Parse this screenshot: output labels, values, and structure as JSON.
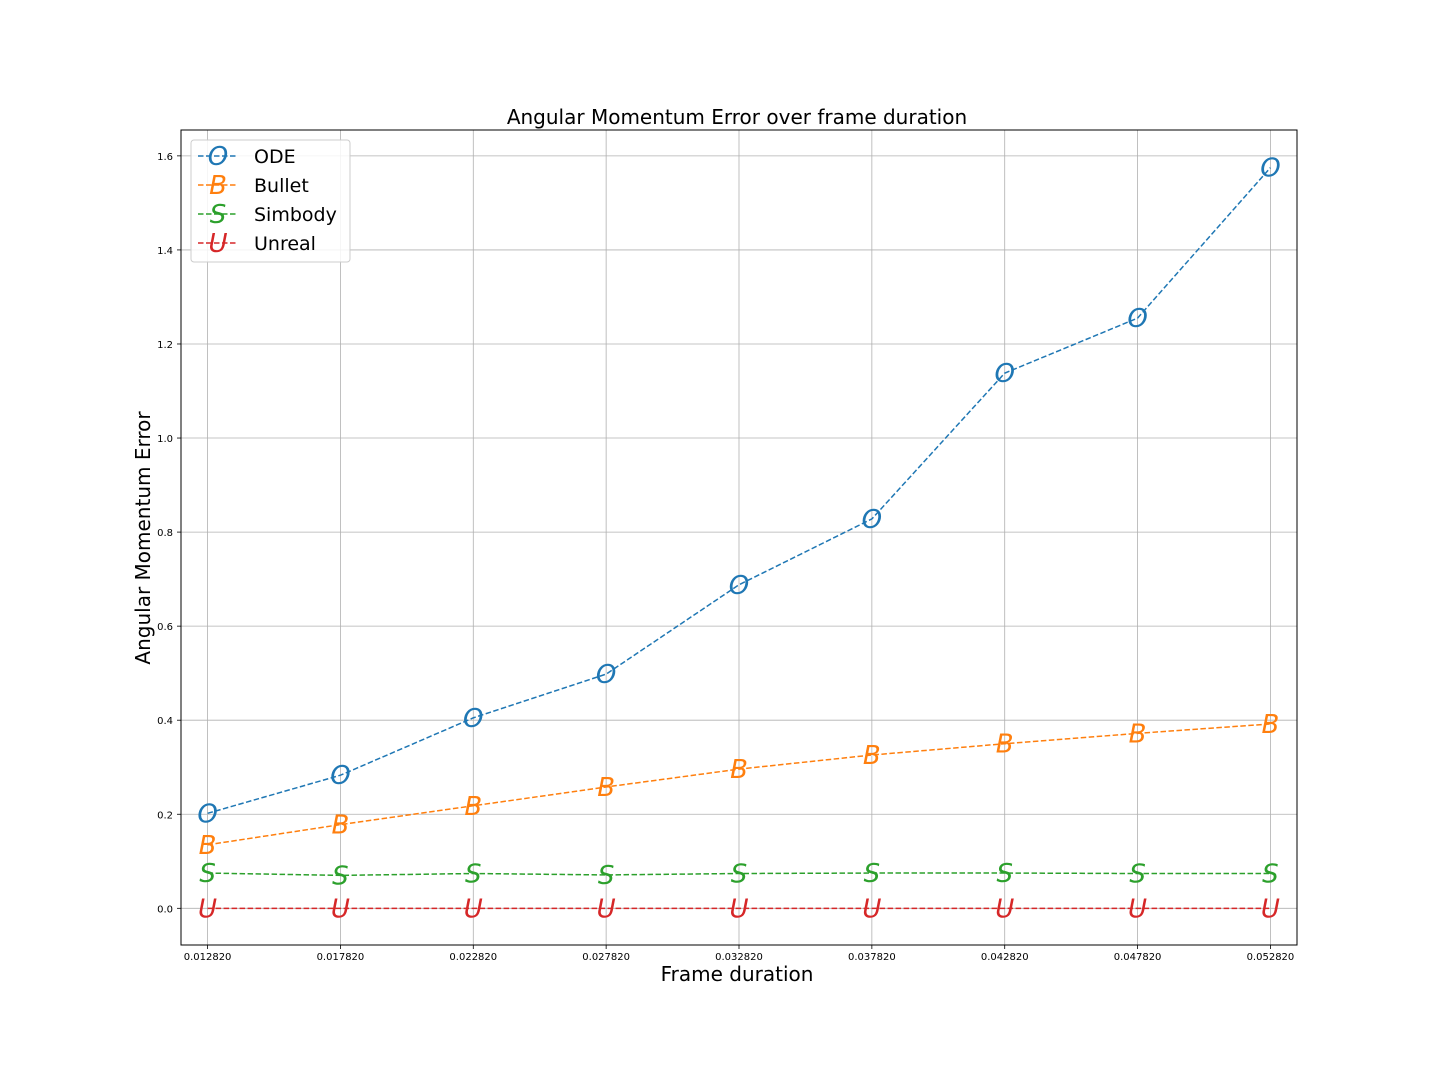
{
  "chart_data": {
    "type": "line",
    "title": "Angular Momentum Error over frame duration",
    "xlabel": "Frame duration",
    "ylabel": "Angular Momentum Error",
    "x": [
      0.01282,
      0.01782,
      0.02282,
      0.02782,
      0.03282,
      0.03782,
      0.04282,
      0.04782,
      0.05282
    ],
    "x_tick_labels": [
      "0.012820",
      "0.017820",
      "0.022820",
      "0.027820",
      "0.032820",
      "0.037820",
      "0.042820",
      "0.047820",
      "0.052820"
    ],
    "y_ticks": [
      0.0,
      0.2,
      0.4,
      0.6,
      0.8,
      1.0,
      1.2,
      1.4,
      1.6
    ],
    "y_tick_labels": [
      "0.0",
      "0.2",
      "0.4",
      "0.6",
      "0.8",
      "1.0",
      "1.2",
      "1.4",
      "1.6"
    ],
    "xlim": [
      0.01182,
      0.05382
    ],
    "ylim": [
      -0.078,
      1.655
    ],
    "grid": true,
    "legend_position": "top-left",
    "series": [
      {
        "name": "ODE",
        "marker": "O",
        "color": "#1f77b4",
        "line_style": "dashed",
        "values": [
          0.202,
          0.283,
          0.405,
          0.498,
          0.688,
          0.828,
          1.138,
          1.255,
          1.575
        ]
      },
      {
        "name": "Bullet",
        "marker": "B",
        "color": "#ff7f0e",
        "line_style": "dashed",
        "values": [
          0.135,
          0.178,
          0.218,
          0.258,
          0.296,
          0.326,
          0.35,
          0.372,
          0.392
        ]
      },
      {
        "name": "Simbody",
        "marker": "S",
        "color": "#2ca02c",
        "line_style": "dashed",
        "values": [
          0.075,
          0.07,
          0.074,
          0.071,
          0.074,
          0.075,
          0.075,
          0.074,
          0.074
        ]
      },
      {
        "name": "Unreal",
        "marker": "U",
        "color": "#d62728",
        "line_style": "dashed",
        "values": [
          0.0,
          0.0,
          0.0,
          0.0,
          0.0,
          0.0,
          0.0,
          0.0,
          0.0
        ]
      }
    ]
  }
}
